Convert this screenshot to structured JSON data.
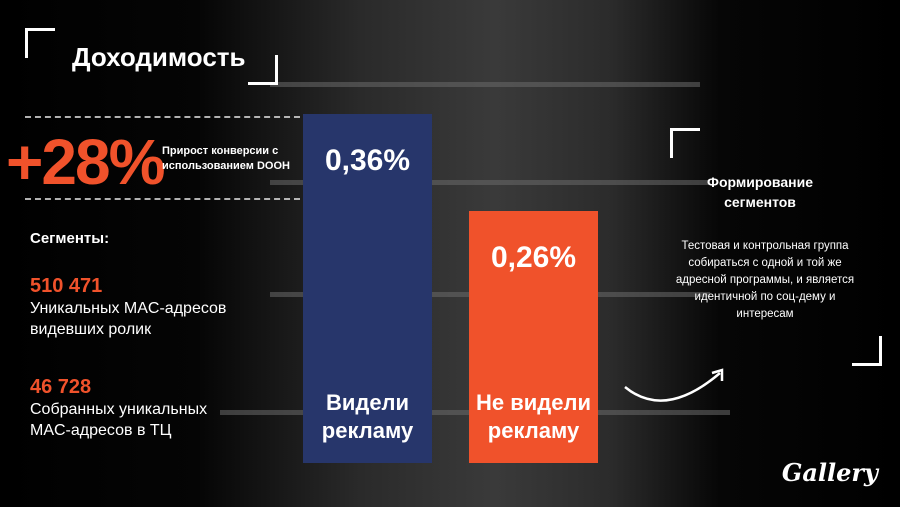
{
  "title": "Доходимость",
  "kpi": {
    "value": "+28%",
    "description": "Прирост конверсии с использованием DOOH"
  },
  "segments": {
    "heading": "Сегменты:",
    "items": [
      {
        "number": "510 471",
        "text": "Уникальных MAC-адресов видевших ролик"
      },
      {
        "number": "46 728",
        "text": "Собранных уникальных MAC-адресов в ТЦ"
      }
    ]
  },
  "chart_data": {
    "type": "bar",
    "categories": [
      "Видели рекламу",
      "Не видели рекламу"
    ],
    "values": [
      0.36,
      0.26
    ],
    "value_labels": [
      "0,36%",
      "0,26%"
    ],
    "colors": [
      "#27366b",
      "#f0522b"
    ],
    "ylim": [
      0,
      0.36
    ],
    "grid": false
  },
  "right_panel": {
    "title": "Формирование сегментов",
    "text": "Тестовая и контрольная группа собираться с одной и той же адресной программы, и является идентичной по соц-дему и интересам"
  },
  "logo": "Gallery"
}
